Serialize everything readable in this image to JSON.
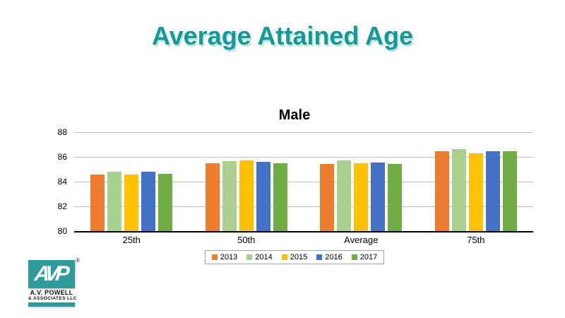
{
  "slide": {
    "title": "Average Attained Age"
  },
  "chart_data": {
    "type": "bar",
    "title": "Male",
    "categories": [
      "25th",
      "50th",
      "Average",
      "75th"
    ],
    "series": [
      {
        "name": "2013",
        "color": "#ED7D31",
        "values": [
          84.6,
          85.5,
          85.45,
          86.45
        ]
      },
      {
        "name": "2014",
        "color": "#A9D08E",
        "values": [
          84.8,
          85.65,
          85.7,
          86.65
        ]
      },
      {
        "name": "2015",
        "color": "#FFC000",
        "values": [
          84.6,
          85.7,
          85.5,
          86.3
        ]
      },
      {
        "name": "2016",
        "color": "#4472C4",
        "values": [
          84.8,
          85.6,
          85.55,
          86.45
        ]
      },
      {
        "name": "2017",
        "color": "#70AD47",
        "values": [
          84.65,
          85.5,
          85.45,
          86.45
        ]
      }
    ],
    "ylim": [
      80,
      88
    ],
    "yticks": [
      80,
      82,
      84,
      86,
      88
    ],
    "grid": true,
    "legend_position": "bottom",
    "xlabel": "",
    "ylabel": ""
  },
  "logo": {
    "letters": "AVP",
    "reg": "®",
    "line1": "A.V. POWELL",
    "line2": "& ASSOCIATES LLC"
  },
  "colors": {
    "title_teal": "#149898",
    "gridline": "#BFBFBF",
    "axis": "#000000",
    "logo_teal": "#2F9C9C"
  }
}
